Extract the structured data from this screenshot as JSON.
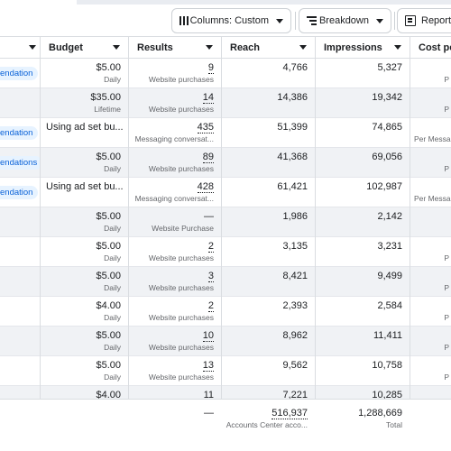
{
  "toolbar": {
    "columns_label": "Columns: Custom",
    "breakdown_label": "Breakdown",
    "reports_label": "Reports"
  },
  "table": {
    "headers": {
      "budget": "Budget",
      "results": "Results",
      "reach": "Reach",
      "impressions": "Impressions",
      "cost": "Cost per"
    },
    "rows": [
      {
        "rec": "endation",
        "budget": "$5.00",
        "budget_type": "Daily",
        "results": "9",
        "result_type": "Website purchases",
        "reach": "4,766",
        "impressions": "5,327",
        "cost_sub": "P"
      },
      {
        "rec": "",
        "budget": "$35.00",
        "budget_type": "Lifetime",
        "results": "14",
        "result_type": "Website purchases",
        "reach": "14,386",
        "impressions": "19,342",
        "cost_sub": "P"
      },
      {
        "rec": "endation",
        "budget_text": "Using ad set bu...",
        "results": "435",
        "result_type": "Messaging conversat...",
        "reach": "51,399",
        "impressions": "74,865",
        "cost_sub": "Per Messa"
      },
      {
        "rec": "endations",
        "budget": "$5.00",
        "budget_type": "Daily",
        "results": "89",
        "result_type": "Website purchases",
        "reach": "41,368",
        "impressions": "69,056",
        "cost_sub": "P"
      },
      {
        "rec": "endation",
        "budget_text": "Using ad set bu...",
        "results": "428",
        "result_type": "Messaging conversat...",
        "reach": "61,421",
        "impressions": "102,987",
        "cost_sub": "Per Messa"
      },
      {
        "rec": "",
        "budget": "$5.00",
        "budget_type": "Daily",
        "results": "—",
        "result_type": "Website Purchase",
        "reach": "1,986",
        "impressions": "2,142",
        "cost_sub": ""
      },
      {
        "rec": "",
        "budget": "$5.00",
        "budget_type": "Daily",
        "results": "2",
        "result_type": "Website purchases",
        "reach": "3,135",
        "impressions": "3,231",
        "cost_sub": "P"
      },
      {
        "rec": "",
        "budget": "$5.00",
        "budget_type": "Daily",
        "results": "3",
        "result_type": "Website purchases",
        "reach": "8,421",
        "impressions": "9,499",
        "cost_sub": "P"
      },
      {
        "rec": "",
        "budget": "$4.00",
        "budget_type": "Daily",
        "results": "2",
        "result_type": "Website purchases",
        "reach": "2,393",
        "impressions": "2,584",
        "cost_sub": "P"
      },
      {
        "rec": "",
        "budget": "$5.00",
        "budget_type": "Daily",
        "results": "10",
        "result_type": "Website purchases",
        "reach": "8,962",
        "impressions": "11,411",
        "cost_sub": "P"
      },
      {
        "rec": "",
        "budget": "$5.00",
        "budget_type": "Daily",
        "results": "13",
        "result_type": "Website purchases",
        "reach": "9,562",
        "impressions": "10,758",
        "cost_sub": "P"
      },
      {
        "rec": "",
        "budget": "$4.00",
        "budget_type": "",
        "results": "11",
        "result_type": "",
        "reach": "7,221",
        "impressions": "10,285",
        "cost_sub": ""
      }
    ],
    "totals": {
      "results": "—",
      "reach": "516,937",
      "reach_sub": "Accounts Center acco...",
      "impressions": "1,288,669",
      "impressions_sub": "Total"
    }
  }
}
